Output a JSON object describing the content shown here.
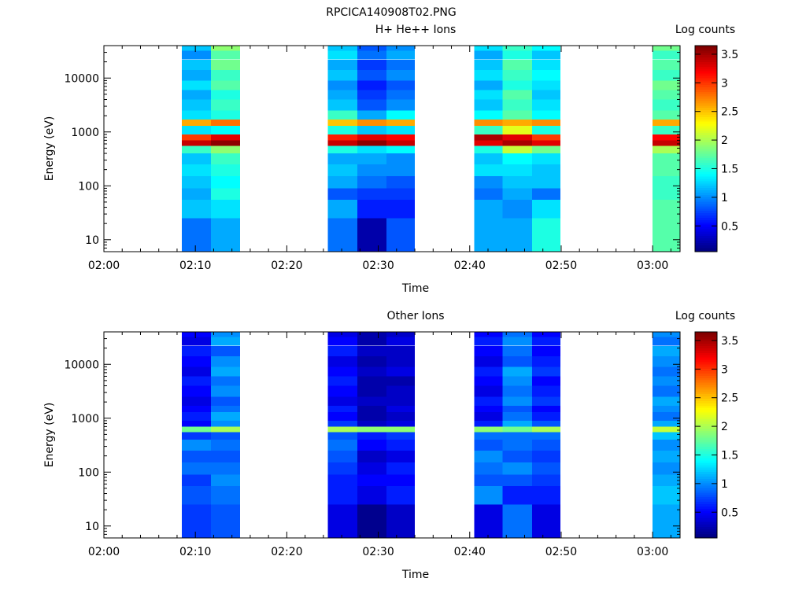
{
  "page_title": "RPCICA140908T02.PNG",
  "chart_data": [
    {
      "type": "heatmap",
      "title": "H+ He++ Ions",
      "xlabel": "Time",
      "ylabel": "Energy (eV)",
      "x_ticks": [
        "02:00",
        "02:10",
        "02:20",
        "02:30",
        "02:40",
        "02:50",
        "03:00"
      ],
      "x_range_minutes": [
        0,
        63
      ],
      "y_scale": "log",
      "y_ticks": [
        10,
        100,
        1000,
        10000
      ],
      "y_range": [
        6,
        40000
      ],
      "colorbar": {
        "label": "Log counts",
        "range": [
          0.05,
          3.65
        ],
        "ticks": [
          "0.5",
          "1",
          "1.5",
          "2",
          "2.5",
          "3",
          "3.5"
        ]
      },
      "energy_bands": [
        [
          6,
          25
        ],
        [
          25,
          55
        ],
        [
          55,
          90
        ],
        [
          90,
          150
        ],
        [
          150,
          250
        ],
        [
          250,
          400
        ],
        [
          400,
          550
        ],
        [
          550,
          700
        ],
        [
          700,
          900
        ],
        [
          900,
          1300
        ],
        [
          1300,
          1700
        ],
        [
          1700,
          2500
        ],
        [
          2500,
          4000
        ],
        [
          4000,
          6000
        ],
        [
          6000,
          9000
        ],
        [
          9000,
          14000
        ],
        [
          14000,
          22000
        ],
        [
          22000,
          32000
        ],
        [
          32000,
          40000
        ]
      ],
      "columns": [
        {
          "start_min": 8.5,
          "end_min": 11.7,
          "values": [
            0.9,
            1.2,
            1.1,
            1.2,
            1.3,
            1.2,
            1.6,
            3.4,
            3.0,
            1.3,
            2.6,
            1.3,
            1.2,
            1.1,
            1.3,
            1.1,
            1.2,
            1.0,
            1.2
          ]
        },
        {
          "start_min": 11.7,
          "end_min": 14.9,
          "values": [
            1.1,
            1.3,
            1.5,
            1.4,
            1.5,
            1.6,
            1.9,
            3.6,
            3.3,
            1.4,
            2.8,
            1.5,
            1.6,
            1.5,
            1.7,
            1.6,
            1.8,
            1.7,
            1.9
          ]
        },
        {
          "start_min": 24.5,
          "end_min": 27.7,
          "values": [
            0.9,
            1.1,
            0.8,
            1.1,
            1.2,
            1.1,
            1.5,
            3.4,
            3.1,
            1.5,
            2.5,
            1.6,
            1.2,
            1.1,
            1.0,
            1.2,
            1.1,
            1.3,
            1.2
          ]
        },
        {
          "start_min": 27.7,
          "end_min": 30.9,
          "values": [
            0.2,
            0.6,
            0.7,
            0.9,
            1.0,
            1.1,
            1.3,
            3.6,
            3.3,
            1.2,
            2.7,
            1.1,
            0.8,
            0.7,
            0.6,
            0.8,
            0.7,
            0.9,
            0.8
          ]
        },
        {
          "start_min": 30.9,
          "end_min": 34.0,
          "values": [
            0.8,
            0.6,
            0.7,
            0.8,
            1.0,
            1.0,
            1.4,
            3.4,
            3.2,
            1.3,
            2.6,
            1.4,
            1.0,
            0.9,
            0.8,
            1.0,
            0.9,
            1.1,
            1.0
          ]
        },
        {
          "start_min": 40.5,
          "end_min": 43.6,
          "values": [
            1.1,
            1.1,
            0.9,
            1.0,
            1.3,
            1.2,
            1.5,
            3.3,
            3.5,
            1.6,
            2.7,
            1.4,
            1.2,
            1.3,
            1.1,
            1.3,
            1.2,
            1.1,
            1.3
          ]
        },
        {
          "start_min": 43.6,
          "end_min": 46.8,
          "values": [
            1.1,
            1.0,
            1.1,
            1.2,
            1.3,
            1.4,
            2.1,
            3.5,
            3.3,
            2.2,
            2.6,
            1.7,
            1.6,
            1.7,
            1.5,
            1.6,
            1.7,
            1.5,
            1.6
          ]
        },
        {
          "start_min": 46.8,
          "end_min": 49.9,
          "values": [
            1.5,
            1.3,
            0.9,
            1.2,
            1.2,
            1.3,
            1.8,
            3.3,
            3.0,
            1.5,
            2.7,
            1.4,
            1.3,
            1.2,
            1.3,
            1.4,
            1.3,
            1.2,
            1.4
          ]
        },
        {
          "start_min": 60.0,
          "end_min": 63.0,
          "values": [
            1.7,
            1.7,
            1.6,
            1.6,
            1.7,
            1.7,
            2.0,
            3.4,
            3.2,
            1.6,
            2.6,
            1.7,
            1.6,
            1.7,
            1.8,
            1.6,
            1.7,
            1.6,
            1.8
          ]
        }
      ]
    },
    {
      "type": "heatmap",
      "title": "Other Ions",
      "xlabel": "Time",
      "ylabel": "Energy (eV)",
      "x_ticks": [
        "02:00",
        "02:10",
        "02:20",
        "02:30",
        "02:40",
        "02:50",
        "03:00"
      ],
      "x_range_minutes": [
        0,
        63
      ],
      "y_scale": "log",
      "y_ticks": [
        10,
        100,
        1000,
        10000
      ],
      "y_range": [
        6,
        40000
      ],
      "colorbar": {
        "label": "Log counts",
        "range": [
          0.05,
          3.65
        ],
        "ticks": [
          "0.5",
          "1",
          "1.5",
          "2",
          "2.5",
          "3",
          "3.5"
        ]
      },
      "energy_bands": [
        [
          6,
          25
        ],
        [
          25,
          55
        ],
        [
          55,
          90
        ],
        [
          90,
          150
        ],
        [
          150,
          250
        ],
        [
          250,
          400
        ],
        [
          400,
          550
        ],
        [
          550,
          700
        ],
        [
          700,
          900
        ],
        [
          900,
          1300
        ],
        [
          1300,
          1700
        ],
        [
          1700,
          2500
        ],
        [
          2500,
          4000
        ],
        [
          4000,
          6000
        ],
        [
          6000,
          9000
        ],
        [
          9000,
          14000
        ],
        [
          14000,
          22000
        ],
        [
          22000,
          32000
        ],
        [
          32000,
          40000
        ]
      ],
      "columns": [
        {
          "start_min": 8.5,
          "end_min": 11.7,
          "values": [
            0.7,
            0.8,
            0.7,
            0.9,
            0.8,
            1.0,
            0.7,
            1.8,
            0.5,
            0.6,
            0.5,
            0.4,
            0.5,
            0.6,
            0.4,
            0.5,
            0.6,
            0.4,
            0.5
          ]
        },
        {
          "start_min": 11.7,
          "end_min": 14.9,
          "values": [
            0.8,
            0.9,
            1.0,
            0.9,
            0.8,
            0.9,
            0.8,
            2.0,
            1.0,
            1.1,
            0.9,
            0.8,
            1.0,
            0.9,
            1.1,
            1.0,
            0.8,
            1.1,
            1.0
          ]
        },
        {
          "start_min": 24.5,
          "end_min": 27.7,
          "values": [
            0.4,
            0.6,
            0.6,
            0.7,
            0.8,
            0.9,
            0.8,
            2.0,
            0.7,
            0.5,
            0.6,
            0.4,
            0.5,
            0.6,
            0.5,
            0.4,
            0.6,
            0.5,
            0.4
          ]
        },
        {
          "start_min": 27.7,
          "end_min": 30.9,
          "values": [
            0.1,
            0.4,
            0.5,
            0.4,
            0.3,
            0.5,
            0.6,
            1.9,
            0.3,
            0.2,
            0.2,
            0.3,
            0.2,
            0.2,
            0.3,
            0.2,
            0.3,
            0.2,
            0.2
          ]
        },
        {
          "start_min": 30.9,
          "end_min": 34.0,
          "values": [
            0.3,
            0.6,
            0.5,
            0.6,
            0.4,
            0.6,
            0.7,
            1.9,
            0.4,
            0.3,
            0.4,
            0.3,
            0.3,
            0.2,
            0.4,
            0.3,
            0.3,
            0.4,
            0.3
          ]
        },
        {
          "start_min": 40.5,
          "end_min": 43.6,
          "values": [
            0.4,
            1.0,
            0.8,
            0.9,
            1.0,
            0.8,
            0.9,
            1.9,
            0.6,
            0.4,
            0.5,
            0.6,
            0.4,
            0.5,
            0.6,
            0.4,
            0.5,
            0.6,
            0.5
          ]
        },
        {
          "start_min": 43.6,
          "end_min": 46.8,
          "values": [
            0.9,
            0.6,
            0.8,
            1.0,
            0.8,
            0.9,
            0.9,
            1.8,
            1.1,
            0.9,
            0.8,
            1.0,
            0.9,
            1.0,
            1.1,
            0.8,
            0.9,
            1.0,
            0.9
          ]
        },
        {
          "start_min": 46.8,
          "end_min": 49.9,
          "values": [
            0.4,
            0.6,
            0.7,
            0.8,
            0.7,
            0.8,
            0.9,
            2.0,
            0.8,
            0.6,
            0.5,
            0.7,
            0.6,
            0.5,
            0.7,
            0.6,
            0.5,
            0.6,
            0.5
          ]
        },
        {
          "start_min": 60.0,
          "end_min": 63.0,
          "values": [
            1.1,
            1.2,
            1.1,
            1.0,
            1.1,
            1.0,
            1.2,
            2.1,
            1.1,
            0.9,
            1.0,
            1.1,
            0.9,
            1.0,
            0.9,
            1.0,
            1.1,
            0.9,
            1.0
          ]
        }
      ]
    }
  ]
}
